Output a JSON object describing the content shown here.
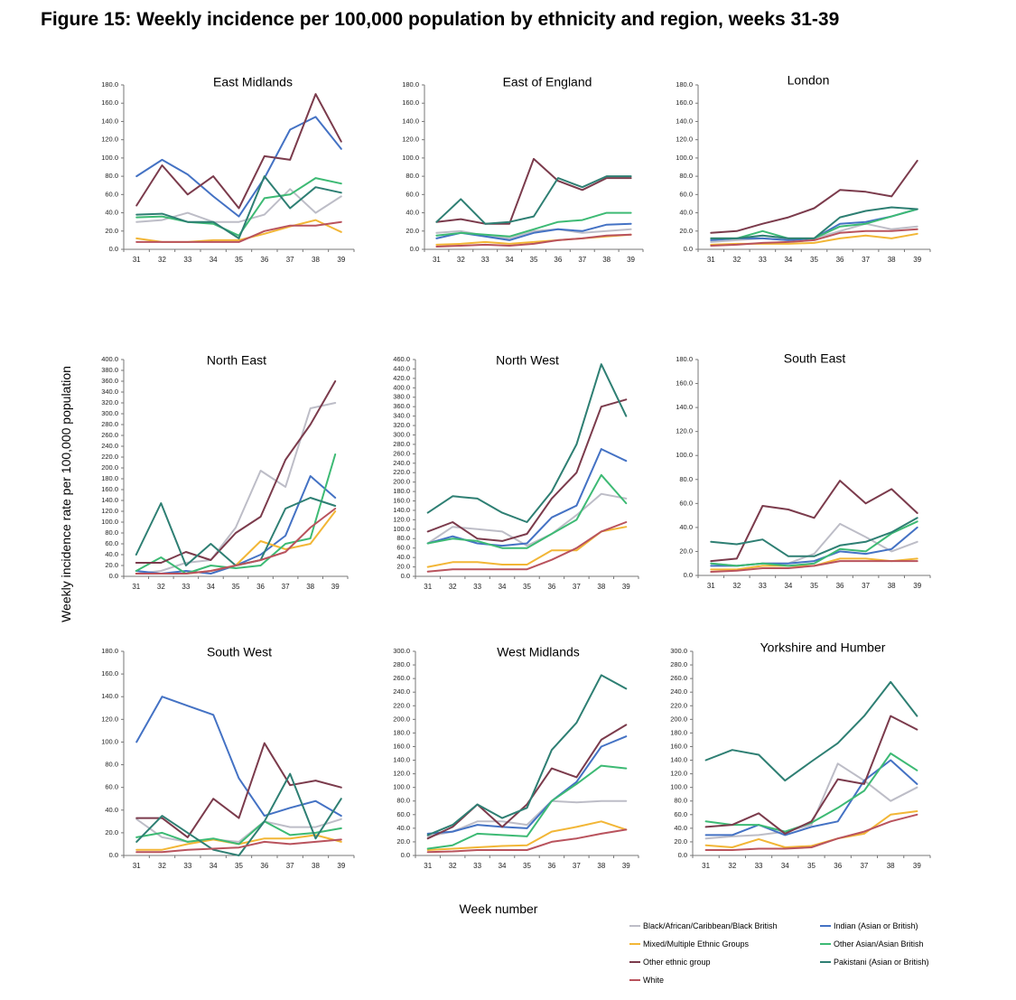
{
  "title": "Figure 15: Weekly incidence per 100,000 population by ethnicity and region, weeks 31-39",
  "ylabel": "Weekly incidence rate per 100,000 population",
  "xlabel": "Week number",
  "colors": {
    "Black/African/Caribbean/Black British": "#bdbdc7",
    "Indian (Asian or British)": "#4472c4",
    "Mixed/Multiple Ethnic Groups": "#f2b636",
    "Other Asian/Asian British": "#3dba74",
    "Other ethnic group": "#7b3b4c",
    "Pakistani (Asian or British)": "#2e7f73",
    "White": "#b9535d"
  },
  "legend": [
    "Black/African/Caribbean/Black British",
    "Indian (Asian or British)",
    "Mixed/Multiple Ethnic Groups",
    "Other Asian/Asian British",
    "Other ethnic group",
    "Pakistani (Asian or British)",
    "White"
  ],
  "chart_data": [
    {
      "type": "line",
      "title": "East Midlands",
      "x": [
        31,
        32,
        33,
        34,
        35,
        36,
        37,
        38,
        39
      ],
      "ylim": [
        0,
        180
      ],
      "ystep": 20,
      "series": [
        {
          "name": "Black/African/Caribbean/Black British",
          "values": [
            30,
            32,
            40,
            30,
            30,
            38,
            66,
            40,
            58
          ]
        },
        {
          "name": "Indian (Asian or British)",
          "values": [
            80,
            98,
            82,
            58,
            36,
            78,
            131,
            145,
            110
          ]
        },
        {
          "name": "Mixed/Multiple Ethnic Groups",
          "values": [
            12,
            8,
            8,
            10,
            10,
            17,
            25,
            32,
            19
          ]
        },
        {
          "name": "Other Asian/Asian British",
          "values": [
            35,
            36,
            30,
            28,
            15,
            56,
            60,
            78,
            72
          ]
        },
        {
          "name": "Other ethnic group",
          "values": [
            48,
            92,
            60,
            80,
            45,
            102,
            98,
            170,
            118
          ]
        },
        {
          "name": "Pakistani (Asian or British)",
          "values": [
            38,
            39,
            30,
            30,
            12,
            80,
            45,
            68,
            62
          ]
        },
        {
          "name": "White",
          "values": [
            8,
            8,
            8,
            8,
            8,
            20,
            26,
            26,
            30
          ]
        }
      ]
    },
    {
      "type": "line",
      "title": "East of England",
      "x": [
        31,
        32,
        33,
        34,
        35,
        36,
        37,
        38,
        39
      ],
      "ylim": [
        0,
        180
      ],
      "ystep": 20,
      "series": [
        {
          "name": "Black/African/Caribbean/Black British",
          "values": [
            18,
            20,
            15,
            12,
            20,
            22,
            18,
            20,
            22
          ]
        },
        {
          "name": "Indian (Asian or British)",
          "values": [
            12,
            18,
            14,
            10,
            18,
            22,
            20,
            27,
            28
          ]
        },
        {
          "name": "Mixed/Multiple Ethnic Groups",
          "values": [
            5,
            6,
            8,
            6,
            8,
            10,
            12,
            14,
            16
          ]
        },
        {
          "name": "Other Asian/Asian British",
          "values": [
            15,
            18,
            16,
            14,
            22,
            30,
            32,
            40,
            40
          ]
        },
        {
          "name": "Other ethnic group",
          "values": [
            30,
            33,
            28,
            28,
            99,
            75,
            65,
            78,
            78
          ]
        },
        {
          "name": "Pakistani (Asian or British)",
          "values": [
            30,
            55,
            28,
            30,
            36,
            78,
            68,
            80,
            80
          ]
        },
        {
          "name": "White",
          "values": [
            3,
            4,
            5,
            4,
            6,
            10,
            12,
            15,
            16
          ]
        }
      ]
    },
    {
      "type": "line",
      "title": "London",
      "x": [
        31,
        32,
        33,
        34,
        35,
        36,
        37,
        38,
        39
      ],
      "ylim": [
        0,
        180
      ],
      "ystep": 20,
      "series": [
        {
          "name": "Black/African/Caribbean/Black British",
          "values": [
            8,
            10,
            12,
            10,
            12,
            20,
            28,
            22,
            25
          ]
        },
        {
          "name": "Indian (Asian or British)",
          "values": [
            10,
            12,
            12,
            10,
            12,
            28,
            30,
            36,
            44
          ]
        },
        {
          "name": "Mixed/Multiple Ethnic Groups",
          "values": [
            5,
            6,
            6,
            6,
            7,
            12,
            15,
            12,
            17
          ]
        },
        {
          "name": "Other Asian/Asian British",
          "values": [
            12,
            12,
            20,
            12,
            12,
            25,
            28,
            36,
            44
          ]
        },
        {
          "name": "Other ethnic group",
          "values": [
            18,
            20,
            28,
            35,
            45,
            65,
            63,
            58,
            97
          ]
        },
        {
          "name": "Pakistani (Asian or British)",
          "values": [
            12,
            12,
            15,
            12,
            12,
            35,
            42,
            46,
            44
          ]
        },
        {
          "name": "White",
          "values": [
            4,
            5,
            7,
            8,
            10,
            18,
            20,
            20,
            22
          ]
        }
      ]
    },
    {
      "type": "line",
      "title": "North East",
      "x": [
        31,
        32,
        33,
        34,
        35,
        36,
        37,
        38,
        39
      ],
      "ylim": [
        0,
        400
      ],
      "ystep": 20,
      "series": [
        {
          "name": "Black/African/Caribbean/Black British",
          "values": [
            5,
            10,
            25,
            30,
            90,
            195,
            165,
            310,
            320
          ]
        },
        {
          "name": "Indian (Asian or British)",
          "values": [
            10,
            5,
            10,
            5,
            20,
            40,
            75,
            185,
            145
          ]
        },
        {
          "name": "Mixed/Multiple Ethnic Groups",
          "values": [
            5,
            5,
            5,
            10,
            20,
            65,
            50,
            60,
            120
          ]
        },
        {
          "name": "Other Asian/Asian British",
          "values": [
            10,
            35,
            5,
            20,
            15,
            20,
            60,
            70,
            225
          ]
        },
        {
          "name": "Other ethnic group",
          "values": [
            25,
            25,
            45,
            30,
            80,
            110,
            215,
            280,
            360
          ]
        },
        {
          "name": "Pakistani (Asian or British)",
          "values": [
            40,
            135,
            20,
            60,
            20,
            30,
            125,
            145,
            130
          ]
        },
        {
          "name": "White",
          "values": [
            5,
            5,
            5,
            10,
            20,
            30,
            45,
            90,
            125
          ]
        }
      ]
    },
    {
      "type": "line",
      "title": "North West",
      "x": [
        31,
        32,
        33,
        34,
        35,
        36,
        37,
        38,
        39
      ],
      "ylim": [
        0,
        460
      ],
      "ystep": 20,
      "series": [
        {
          "name": "Black/African/Caribbean/Black British",
          "values": [
            70,
            105,
            100,
            95,
            65,
            90,
            130,
            175,
            165
          ]
        },
        {
          "name": "Indian (Asian or British)",
          "values": [
            70,
            85,
            70,
            65,
            70,
            125,
            150,
            270,
            245
          ]
        },
        {
          "name": "Mixed/Multiple Ethnic Groups",
          "values": [
            20,
            30,
            30,
            25,
            25,
            55,
            55,
            95,
            105
          ]
        },
        {
          "name": "Other Asian/Asian British",
          "values": [
            70,
            80,
            75,
            60,
            60,
            90,
            120,
            215,
            155
          ]
        },
        {
          "name": "Other ethnic group",
          "values": [
            95,
            115,
            80,
            75,
            90,
            165,
            220,
            360,
            375
          ]
        },
        {
          "name": "Pakistani (Asian or British)",
          "values": [
            135,
            170,
            165,
            135,
            115,
            180,
            280,
            450,
            340
          ]
        },
        {
          "name": "White",
          "values": [
            10,
            15,
            15,
            15,
            15,
            35,
            60,
            95,
            115
          ]
        }
      ]
    },
    {
      "type": "line",
      "title": "South East",
      "x": [
        31,
        32,
        33,
        34,
        35,
        36,
        37,
        38,
        39
      ],
      "ylim": [
        0,
        180
      ],
      "ystep": 20,
      "series": [
        {
          "name": "Black/African/Caribbean/Black British",
          "values": [
            10,
            8,
            10,
            10,
            18,
            43,
            32,
            20,
            28
          ]
        },
        {
          "name": "Indian (Asian or British)",
          "values": [
            8,
            8,
            10,
            10,
            12,
            20,
            18,
            22,
            40
          ]
        },
        {
          "name": "Mixed/Multiple Ethnic Groups",
          "values": [
            5,
            5,
            8,
            8,
            8,
            14,
            14,
            12,
            14
          ]
        },
        {
          "name": "Other Asian/Asian British",
          "values": [
            10,
            8,
            10,
            8,
            10,
            22,
            20,
            35,
            45
          ]
        },
        {
          "name": "Other ethnic group",
          "values": [
            12,
            14,
            58,
            55,
            48,
            79,
            60,
            72,
            52
          ]
        },
        {
          "name": "Pakistani (Asian or British)",
          "values": [
            28,
            26,
            30,
            16,
            16,
            25,
            28,
            36,
            48
          ]
        },
        {
          "name": "White",
          "values": [
            3,
            4,
            6,
            6,
            8,
            12,
            12,
            12,
            12
          ]
        }
      ]
    },
    {
      "type": "line",
      "title": "South West",
      "x": [
        31,
        32,
        33,
        34,
        35,
        36,
        37,
        38,
        39
      ],
      "ylim": [
        0,
        180
      ],
      "ystep": 20,
      "series": [
        {
          "name": "Black/African/Caribbean/Black British",
          "values": [
            32,
            16,
            12,
            14,
            12,
            30,
            25,
            25,
            32
          ]
        },
        {
          "name": "Indian (Asian or British)",
          "values": [
            100,
            140,
            132,
            124,
            68,
            35,
            42,
            48,
            35
          ]
        },
        {
          "name": "Mixed/Multiple Ethnic Groups",
          "values": [
            5,
            5,
            10,
            14,
            10,
            15,
            15,
            18,
            12
          ]
        },
        {
          "name": "Other Asian/Asian British",
          "values": [
            16,
            20,
            12,
            15,
            10,
            30,
            18,
            20,
            24
          ]
        },
        {
          "name": "Other ethnic group",
          "values": [
            33,
            33,
            16,
            50,
            33,
            99,
            62,
            66,
            60
          ]
        },
        {
          "name": "Pakistani (Asian or British)",
          "values": [
            12,
            35,
            20,
            5,
            0,
            30,
            72,
            15,
            50
          ]
        },
        {
          "name": "White",
          "values": [
            3,
            3,
            5,
            6,
            7,
            12,
            10,
            12,
            14
          ]
        }
      ]
    },
    {
      "type": "line",
      "title": "West Midlands",
      "x": [
        31,
        32,
        33,
        34,
        35,
        36,
        37,
        38,
        39
      ],
      "ylim": [
        0,
        300
      ],
      "ystep": 20,
      "series": [
        {
          "name": "Black/African/Caribbean/Black British",
          "values": [
            28,
            35,
            50,
            50,
            45,
            80,
            78,
            80,
            80
          ]
        },
        {
          "name": "Indian (Asian or British)",
          "values": [
            32,
            35,
            45,
            42,
            40,
            80,
            108,
            160,
            175
          ]
        },
        {
          "name": "Mixed/Multiple Ethnic Groups",
          "values": [
            8,
            10,
            12,
            14,
            15,
            35,
            42,
            50,
            38
          ]
        },
        {
          "name": "Other Asian/Asian British",
          "values": [
            10,
            15,
            32,
            30,
            28,
            80,
            105,
            132,
            128
          ]
        },
        {
          "name": "Other ethnic group",
          "values": [
            25,
            42,
            75,
            42,
            75,
            128,
            115,
            170,
            192
          ]
        },
        {
          "name": "Pakistani (Asian or British)",
          "values": [
            30,
            45,
            75,
            55,
            70,
            155,
            195,
            265,
            245
          ]
        },
        {
          "name": "White",
          "values": [
            5,
            6,
            8,
            8,
            8,
            20,
            25,
            32,
            38
          ]
        }
      ]
    },
    {
      "type": "line",
      "title": "Yorkshire and Humber",
      "x": [
        31,
        32,
        33,
        34,
        35,
        36,
        37,
        38,
        39
      ],
      "ylim": [
        0,
        300
      ],
      "ystep": 20,
      "series": [
        {
          "name": "Black/African/Caribbean/Black British",
          "values": [
            25,
            28,
            30,
            35,
            45,
            135,
            110,
            80,
            100
          ]
        },
        {
          "name": "Indian (Asian or British)",
          "values": [
            30,
            30,
            45,
            30,
            42,
            50,
            110,
            140,
            105
          ]
        },
        {
          "name": "Mixed/Multiple Ethnic Groups",
          "values": [
            15,
            12,
            24,
            12,
            14,
            25,
            32,
            60,
            65
          ]
        },
        {
          "name": "Other Asian/Asian British",
          "values": [
            50,
            45,
            45,
            35,
            48,
            70,
            95,
            150,
            125
          ]
        },
        {
          "name": "Other ethnic group",
          "values": [
            42,
            45,
            62,
            32,
            50,
            112,
            105,
            205,
            185
          ]
        },
        {
          "name": "Pakistani (Asian or British)",
          "values": [
            140,
            155,
            148,
            110,
            138,
            165,
            205,
            255,
            205
          ]
        },
        {
          "name": "White",
          "values": [
            8,
            8,
            10,
            10,
            12,
            25,
            35,
            50,
            60
          ]
        }
      ]
    }
  ]
}
